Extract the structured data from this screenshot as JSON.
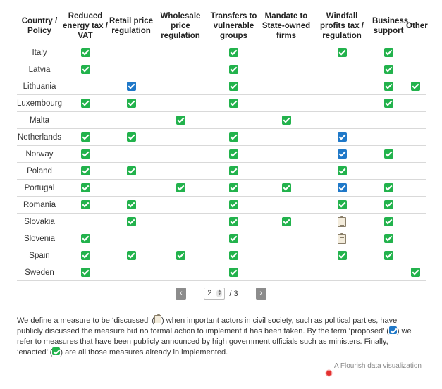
{
  "table": {
    "columns": [
      "Country / Policy",
      "Reduced energy tax / VAT",
      "Retail price regulation",
      "Wholesale price regulation",
      "Transfers to vulnerable groups",
      "Mandate to State-owned firms",
      "Windfall profits tax / regulation",
      "Business support",
      "Other"
    ],
    "rows": [
      {
        "country": "Italy",
        "cells": [
          "enacted",
          "",
          "",
          "enacted",
          "",
          "enacted",
          "enacted",
          ""
        ]
      },
      {
        "country": "Latvia",
        "cells": [
          "enacted",
          "",
          "",
          "enacted",
          "",
          "",
          "enacted",
          ""
        ]
      },
      {
        "country": "Lithuania",
        "cells": [
          "",
          "proposed",
          "",
          "enacted",
          "",
          "",
          "enacted",
          "enacted"
        ]
      },
      {
        "country": "Luxembourg",
        "cells": [
          "enacted",
          "enacted",
          "",
          "enacted",
          "",
          "",
          "enacted",
          ""
        ]
      },
      {
        "country": "Malta",
        "cells": [
          "",
          "",
          "enacted",
          "",
          "enacted",
          "",
          "",
          ""
        ]
      },
      {
        "country": "Netherlands",
        "cells": [
          "enacted",
          "enacted",
          "",
          "enacted",
          "",
          "proposed",
          "",
          ""
        ]
      },
      {
        "country": "Norway",
        "cells": [
          "enacted",
          "",
          "",
          "enacted",
          "",
          "proposed",
          "enacted",
          ""
        ]
      },
      {
        "country": "Poland",
        "cells": [
          "enacted",
          "enacted",
          "",
          "enacted",
          "",
          "enacted",
          "",
          ""
        ]
      },
      {
        "country": "Portugal",
        "cells": [
          "enacted",
          "",
          "enacted",
          "enacted",
          "enacted",
          "proposed",
          "enacted",
          ""
        ]
      },
      {
        "country": "Romania",
        "cells": [
          "enacted",
          "enacted",
          "",
          "enacted",
          "",
          "enacted",
          "enacted",
          ""
        ]
      },
      {
        "country": "Slovakia",
        "cells": [
          "",
          "enacted",
          "",
          "enacted",
          "enacted",
          "discussed",
          "enacted",
          ""
        ]
      },
      {
        "country": "Slovenia",
        "cells": [
          "enacted",
          "",
          "",
          "enacted",
          "",
          "discussed",
          "enacted",
          ""
        ]
      },
      {
        "country": "Spain",
        "cells": [
          "enacted",
          "enacted",
          "enacted",
          "enacted",
          "",
          "enacted",
          "enacted",
          ""
        ]
      },
      {
        "country": "Sweden",
        "cells": [
          "enacted",
          "",
          "",
          "enacted",
          "",
          "",
          "",
          "enacted"
        ]
      }
    ]
  },
  "pagination": {
    "prev": "‹",
    "next": "›",
    "current": "2",
    "total": "/ 3"
  },
  "footnote": {
    "p1": "We define a measure to be ‘discussed’ (",
    "p2": ") when important actors in civil society, such as political parties, have publicly discussed the measure but no formal action to implement it has been taken. By the term ‘proposed’ (",
    "p3": ") we refer to measures that have been publicly announced by high government officials such as ministers. Finally, ‘enacted’ (",
    "p4": ") are all those measures already in implemented."
  },
  "credit": {
    "text": "A Flourish data visualization"
  },
  "colors": {
    "enacted": "#22b24c",
    "proposed": "#1f78c8",
    "discussed": "#8a7f6a",
    "flourish_logo": "#e3302f"
  }
}
